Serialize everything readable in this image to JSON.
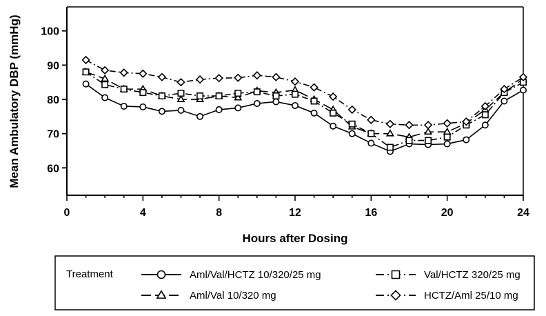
{
  "chart_data": {
    "type": "line",
    "xlabel": "Hours after Dosing",
    "ylabel": "Mean Ambulatory DBP (mmHg)",
    "xlim": [
      0,
      24
    ],
    "ylim": [
      52,
      107
    ],
    "xticks": [
      0,
      4,
      8,
      12,
      16,
      20,
      24
    ],
    "yticks": [
      60,
      70,
      80,
      90,
      100
    ],
    "grid": false,
    "legend_title": "Treatment",
    "legend_position": "bottom",
    "x": [
      1,
      2,
      3,
      4,
      5,
      6,
      7,
      8,
      9,
      10,
      11,
      12,
      13,
      14,
      15,
      16,
      17,
      18,
      19,
      20,
      21,
      22,
      23,
      24
    ],
    "series": [
      {
        "name": "Aml/Val/HCTZ 10/320/25 mg",
        "marker": "circle",
        "line_style": "solid",
        "values": [
          84.5,
          80.5,
          78,
          77.8,
          76.5,
          76.8,
          75,
          77,
          77.5,
          78.8,
          79.3,
          78.2,
          76,
          72.2,
          70,
          67.2,
          64.8,
          67,
          66.8,
          67,
          68.2,
          72.5,
          79.5,
          82.7
        ]
      },
      {
        "name": "Aml/Val 10/320 mg",
        "marker": "triangle",
        "line_style": "long-dash",
        "values": [
          88,
          86,
          83,
          83,
          81,
          80,
          80,
          81,
          80.5,
          82.5,
          82,
          82.7,
          80,
          77,
          72,
          70,
          70,
          69,
          70.5,
          70.5,
          73,
          77,
          82,
          86
        ]
      },
      {
        "name": "Val/HCTZ 320/25 mg",
        "marker": "square",
        "line_style": "dash-dot",
        "values": [
          88,
          84.3,
          83,
          82,
          81,
          81.8,
          81,
          81,
          81.8,
          82.2,
          81,
          81.5,
          79.5,
          76,
          72.8,
          70,
          66,
          68,
          68,
          69,
          72.5,
          75.5,
          82,
          85
        ]
      },
      {
        "name": "HCTZ/Aml 25/10 mg",
        "marker": "diamond",
        "line_style": "dash-dot",
        "values": [
          91.5,
          88.5,
          87.8,
          87.5,
          86.5,
          85,
          85.8,
          86.2,
          86.3,
          87,
          86.5,
          85.2,
          83.5,
          80.8,
          77,
          74,
          72.8,
          72.5,
          72.5,
          73,
          73.5,
          78,
          83,
          86.5
        ]
      }
    ]
  }
}
